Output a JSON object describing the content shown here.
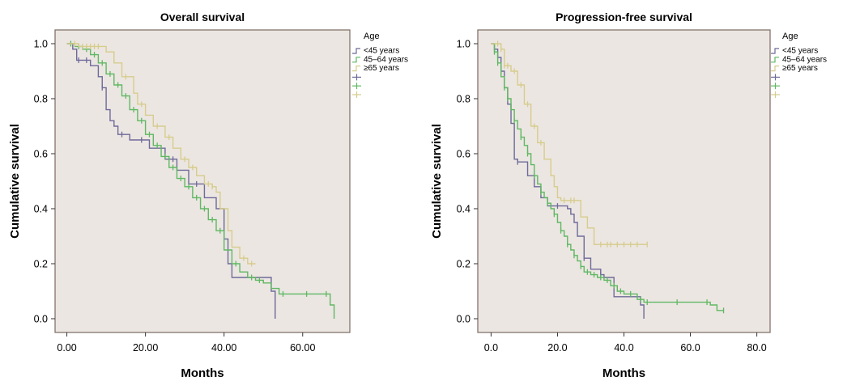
{
  "chart_data": [
    {
      "type": "line",
      "subtype": "kaplan-meier-step",
      "title": "Overall survival",
      "xlabel": "Months",
      "ylabel": "Cumulative survival",
      "xlim": [
        -3,
        72
      ],
      "ylim": [
        -0.05,
        1.05
      ],
      "xticks": [
        0,
        20,
        40,
        60
      ],
      "xtick_labels": [
        "0.00",
        "20.00",
        "40.00",
        "60.00"
      ],
      "yticks": [
        0,
        0.2,
        0.4,
        0.6,
        0.8,
        1.0
      ],
      "ytick_labels": [
        "0.0",
        "0.2",
        "0.4",
        "0.6",
        "0.8",
        "1.0"
      ],
      "grid": false,
      "legend": {
        "title": "Age",
        "placement": "top-right-outside",
        "entries": [
          "<45 years",
          "45–64 years",
          "≥65 years",
          "",
          "",
          ""
        ]
      },
      "series": [
        {
          "name": "<45 years",
          "color": "#6e6a9a",
          "points": [
            [
              0,
              1.0
            ],
            [
              1.5,
              0.98
            ],
            [
              2.5,
              0.94
            ],
            [
              5,
              0.94
            ],
            [
              6,
              0.92
            ],
            [
              8,
              0.88
            ],
            [
              9,
              0.84
            ],
            [
              10,
              0.76
            ],
            [
              11,
              0.72
            ],
            [
              12,
              0.7
            ],
            [
              13,
              0.67
            ],
            [
              16,
              0.65
            ],
            [
              20,
              0.65
            ],
            [
              21,
              0.62
            ],
            [
              25,
              0.58
            ],
            [
              28,
              0.54
            ],
            [
              31,
              0.49
            ],
            [
              34,
              0.49
            ],
            [
              35,
              0.44
            ],
            [
              38,
              0.4
            ],
            [
              40,
              0.29
            ],
            [
              41,
              0.2
            ],
            [
              42,
              0.15
            ],
            [
              50,
              0.15
            ],
            [
              51,
              0.15
            ],
            [
              52,
              0.1
            ],
            [
              53,
              0.0
            ]
          ],
          "censor_x": [
            3,
            5,
            9,
            14,
            19,
            27,
            33
          ]
        },
        {
          "name": "45–64 years",
          "color": "#5fb863",
          "points": [
            [
              0,
              1.0
            ],
            [
              2,
              0.99
            ],
            [
              4,
              0.98
            ],
            [
              6,
              0.96
            ],
            [
              8,
              0.93
            ],
            [
              10,
              0.89
            ],
            [
              12,
              0.85
            ],
            [
              14,
              0.81
            ],
            [
              16,
              0.76
            ],
            [
              18,
              0.72
            ],
            [
              20,
              0.67
            ],
            [
              22,
              0.63
            ],
            [
              24,
              0.59
            ],
            [
              26,
              0.55
            ],
            [
              28,
              0.51
            ],
            [
              30,
              0.48
            ],
            [
              32,
              0.44
            ],
            [
              34,
              0.4
            ],
            [
              36,
              0.36
            ],
            [
              38,
              0.32
            ],
            [
              40,
              0.25
            ],
            [
              42,
              0.2
            ],
            [
              44,
              0.17
            ],
            [
              46,
              0.15
            ],
            [
              48,
              0.14
            ],
            [
              50,
              0.13
            ],
            [
              52,
              0.11
            ],
            [
              54,
              0.09
            ],
            [
              60,
              0.09
            ],
            [
              66,
              0.09
            ],
            [
              67,
              0.05
            ],
            [
              68,
              0.0
            ]
          ],
          "censor_x": [
            1,
            3,
            5,
            7,
            9,
            11,
            13,
            15,
            17,
            19,
            21,
            23,
            25,
            27,
            29,
            31,
            33,
            35,
            37,
            39,
            43,
            47,
            49,
            55,
            61,
            66
          ]
        },
        {
          "name": "≥65 years",
          "color": "#d6cc8c",
          "points": [
            [
              0,
              1.0
            ],
            [
              3,
              0.99
            ],
            [
              9,
              0.99
            ],
            [
              10,
              0.97
            ],
            [
              12,
              0.93
            ],
            [
              14,
              0.88
            ],
            [
              17,
              0.82
            ],
            [
              18,
              0.78
            ],
            [
              20,
              0.74
            ],
            [
              22,
              0.7
            ],
            [
              25,
              0.66
            ],
            [
              27,
              0.62
            ],
            [
              29,
              0.58
            ],
            [
              31,
              0.55
            ],
            [
              33,
              0.52
            ],
            [
              35,
              0.49
            ],
            [
              37,
              0.48
            ],
            [
              38,
              0.46
            ],
            [
              39,
              0.4
            ],
            [
              41,
              0.32
            ],
            [
              42,
              0.26
            ],
            [
              44,
              0.22
            ],
            [
              46,
              0.2
            ],
            [
              48,
              0.2
            ]
          ],
          "censor_x": [
            2,
            4,
            5,
            6,
            7,
            8,
            15,
            19,
            23,
            26,
            30,
            32,
            36,
            37,
            45,
            47
          ]
        }
      ]
    },
    {
      "type": "line",
      "subtype": "kaplan-meier-step",
      "title": "Progression-free survival",
      "xlabel": "Months",
      "ylabel": "Cumulative survival",
      "xlim": [
        -4,
        84
      ],
      "ylim": [
        -0.05,
        1.05
      ],
      "xticks": [
        0,
        20,
        40,
        60,
        80
      ],
      "xtick_labels": [
        "0.0",
        "20.0",
        "40.0",
        "60.0",
        "80.0"
      ],
      "yticks": [
        0,
        0.2,
        0.4,
        0.6,
        0.8,
        1.0
      ],
      "ytick_labels": [
        "0.0",
        "0.2",
        "0.4",
        "0.6",
        "0.8",
        "1.0"
      ],
      "grid": false,
      "legend": {
        "title": "Age",
        "placement": "top-right-outside",
        "entries": [
          "<45 years",
          "45–64 years",
          "≥65 years",
          "",
          "",
          ""
        ]
      },
      "series": [
        {
          "name": "<45 years",
          "color": "#6e6a9a",
          "points": [
            [
              0,
              1.0
            ],
            [
              1,
              0.98
            ],
            [
              2,
              0.95
            ],
            [
              3,
              0.9
            ],
            [
              4,
              0.84
            ],
            [
              5,
              0.78
            ],
            [
              6,
              0.71
            ],
            [
              7,
              0.58
            ],
            [
              8,
              0.57
            ],
            [
              10,
              0.57
            ],
            [
              11,
              0.52
            ],
            [
              13,
              0.48
            ],
            [
              15,
              0.44
            ],
            [
              17,
              0.41
            ],
            [
              22,
              0.41
            ],
            [
              23,
              0.4
            ],
            [
              24,
              0.38
            ],
            [
              25,
              0.35
            ],
            [
              26,
              0.3
            ],
            [
              28,
              0.22
            ],
            [
              30,
              0.18
            ],
            [
              33,
              0.16
            ],
            [
              34,
              0.15
            ],
            [
              36,
              0.15
            ],
            [
              37,
              0.08
            ],
            [
              43,
              0.08
            ],
            [
              45,
              0.05
            ],
            [
              46,
              0.0
            ]
          ],
          "censor_x": [
            3,
            8,
            18,
            20,
            28,
            33
          ]
        },
        {
          "name": "45–64 years",
          "color": "#5fb863",
          "points": [
            [
              0,
              1.0
            ],
            [
              1,
              0.97
            ],
            [
              2,
              0.93
            ],
            [
              3,
              0.88
            ],
            [
              4,
              0.84
            ],
            [
              5,
              0.8
            ],
            [
              6,
              0.76
            ],
            [
              7,
              0.72
            ],
            [
              8,
              0.69
            ],
            [
              9,
              0.66
            ],
            [
              10,
              0.63
            ],
            [
              11,
              0.6
            ],
            [
              12,
              0.56
            ],
            [
              13,
              0.52
            ],
            [
              14,
              0.49
            ],
            [
              15,
              0.46
            ],
            [
              16,
              0.44
            ],
            [
              17,
              0.42
            ],
            [
              18,
              0.4
            ],
            [
              19,
              0.38
            ],
            [
              20,
              0.35
            ],
            [
              21,
              0.32
            ],
            [
              22,
              0.3
            ],
            [
              23,
              0.27
            ],
            [
              24,
              0.25
            ],
            [
              25,
              0.23
            ],
            [
              26,
              0.21
            ],
            [
              27,
              0.19
            ],
            [
              28,
              0.17
            ],
            [
              30,
              0.16
            ],
            [
              32,
              0.15
            ],
            [
              34,
              0.14
            ],
            [
              36,
              0.12
            ],
            [
              38,
              0.1
            ],
            [
              40,
              0.09
            ],
            [
              44,
              0.07
            ],
            [
              46,
              0.06
            ],
            [
              52,
              0.06
            ],
            [
              60,
              0.06
            ],
            [
              65,
              0.06
            ],
            [
              66,
              0.05
            ],
            [
              68,
              0.03
            ],
            [
              70,
              0.03
            ]
          ],
          "censor_x": [
            1,
            2,
            4,
            5,
            7,
            9,
            11,
            13,
            15,
            17,
            19,
            21,
            23,
            25,
            27,
            29,
            31,
            33,
            35,
            37,
            39,
            42,
            45,
            47,
            56,
            65,
            70
          ]
        },
        {
          "name": "≥65 years",
          "color": "#d6cc8c",
          "points": [
            [
              0,
              1.0
            ],
            [
              3,
              0.98
            ],
            [
              4,
              0.92
            ],
            [
              6,
              0.9
            ],
            [
              8,
              0.85
            ],
            [
              10,
              0.78
            ],
            [
              12,
              0.7
            ],
            [
              14,
              0.64
            ],
            [
              16,
              0.58
            ],
            [
              18,
              0.52
            ],
            [
              19,
              0.48
            ],
            [
              20,
              0.44
            ],
            [
              21,
              0.43
            ],
            [
              26,
              0.43
            ],
            [
              27,
              0.37
            ],
            [
              29,
              0.33
            ],
            [
              31,
              0.27
            ],
            [
              47,
              0.27
            ]
          ],
          "censor_x": [
            2,
            3,
            4,
            5,
            7,
            9,
            11,
            13,
            15,
            22,
            24,
            25,
            33,
            35,
            36,
            38,
            40,
            42,
            44,
            47
          ]
        }
      ]
    }
  ]
}
